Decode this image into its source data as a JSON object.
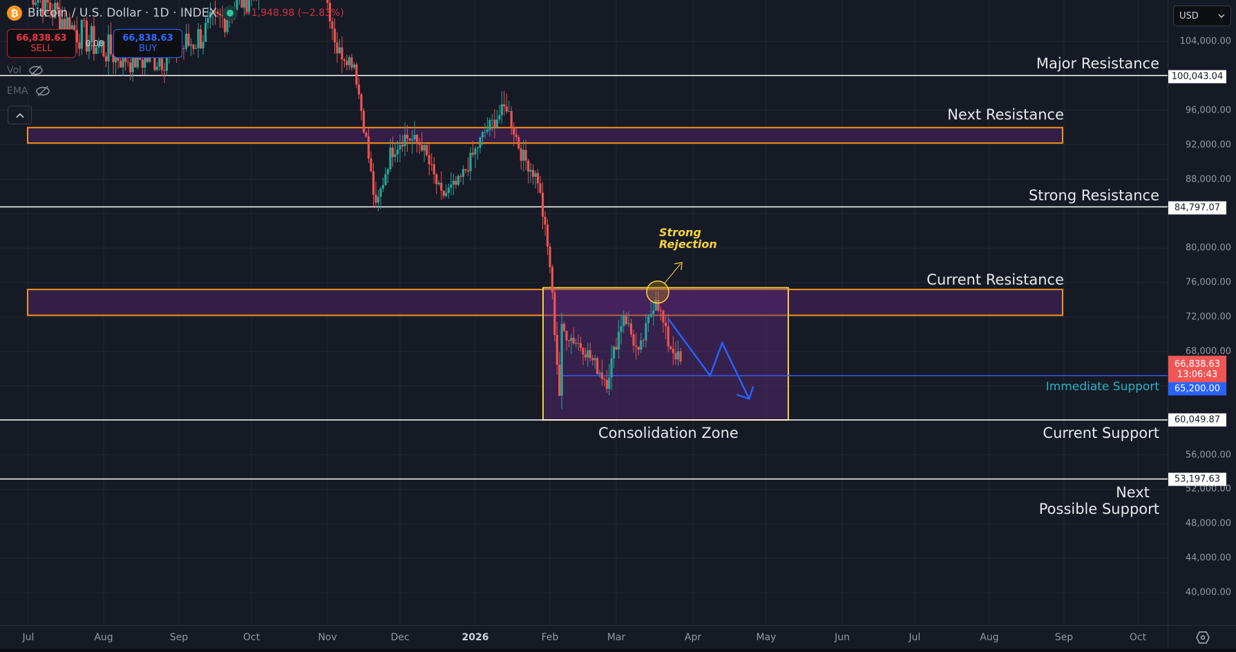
{
  "header": {
    "symbol_title": "Bitcoin / U.S. Dollar · 1D · INDEX",
    "symbol_icon": "bitcoin-icon",
    "market_status": "open",
    "change": "−1,948.98 (−2.83%)",
    "change_color": "#f23645"
  },
  "trade": {
    "sell_price": "66,838.63",
    "sell_label": "SELL",
    "spread": "0.00",
    "buy_price": "66,838.63",
    "buy_label": "BUY"
  },
  "indicators": [
    {
      "label": "Vol",
      "icon": "eye-off-icon"
    },
    {
      "label": "EMA",
      "icon": "eye-off-icon"
    }
  ],
  "collapse_icon": "chevron-up-icon",
  "currency": {
    "label": "USD",
    "icon": "chevron-down-icon"
  },
  "price_axis": {
    "ticks": [
      "104,000.00",
      "96,000.00",
      "92,000.00",
      "88,000.00",
      "80,000.00",
      "76,000.00",
      "72,000.00",
      "68,000.00",
      "56,000.00",
      "52,000.00",
      "48,000.00",
      "44,000.00",
      "40,000.00"
    ],
    "labels": {
      "major_resistance": "100,043.04",
      "strong_resistance": "84,797.07",
      "last_price": "66,838.63",
      "countdown": "13:06:43",
      "immediate_support": "65,200.00",
      "current_support": "60,049.87",
      "next_support": "53,197.63"
    }
  },
  "time_axis": {
    "ticks": [
      "Jul",
      "Aug",
      "Sep",
      "Oct",
      "Nov",
      "Dec",
      "2026",
      "Feb",
      "Mar",
      "Apr",
      "May",
      "Jun",
      "Jul",
      "Aug",
      "Sep",
      "Oct"
    ],
    "settings_icon": "gear-hexagon-icon"
  },
  "annotations": {
    "major_resistance": "Major Resistance",
    "next_resistance": "Next Resistance",
    "strong_resistance": "Strong Resistance",
    "current_resistance": "Current Resistance",
    "immediate_support": "Immediate Support",
    "current_support": "Current Support",
    "next_possible_support_l1": "Next",
    "next_possible_support_l2": "Possible Support",
    "consolidation_zone": "Consolidation Zone",
    "strong_rejection_l1": "Strong",
    "strong_rejection_l2": "Rejection"
  },
  "colors": {
    "background": "#161a25",
    "up_candle": "#26a69a",
    "down_candle": "#ef5350",
    "zone_border_orange": "#f7931a",
    "zone_fill_purple": "#4a1f5c",
    "consolidation_border": "#f5d33a",
    "projection_arrow": "#2962ff",
    "immediate_support_text": "#1fb5c9"
  },
  "chart_data": {
    "type": "candlestick",
    "title": "Bitcoin / U.S. Dollar · 1D · INDEX",
    "xlabel": "",
    "ylabel": "USD",
    "ylim": [
      37000,
      108000
    ],
    "grid": true,
    "x_ticks": [
      "Jul",
      "Aug",
      "Sep",
      "Oct",
      "Nov",
      "Dec",
      "2026",
      "Feb",
      "Mar",
      "Apr",
      "May",
      "Jun",
      "Jul",
      "Aug",
      "Sep",
      "Oct"
    ],
    "y_ticks": [
      40000,
      44000,
      48000,
      52000,
      56000,
      60000,
      64000,
      68000,
      72000,
      76000,
      80000,
      84000,
      88000,
      92000,
      96000,
      100000,
      104000
    ],
    "last_price": 66838.63,
    "change": -1948.98,
    "change_pct": -2.83,
    "approx_close_path": [
      {
        "date": "2025-10-28",
        "close": 114000
      },
      {
        "date": "2025-11-05",
        "close": 103000
      },
      {
        "date": "2025-11-12",
        "close": 101500
      },
      {
        "date": "2025-11-17",
        "close": 92500
      },
      {
        "date": "2025-11-21",
        "close": 84500
      },
      {
        "date": "2025-11-27",
        "close": 91000
      },
      {
        "date": "2025-12-03",
        "close": 93000
      },
      {
        "date": "2025-12-10",
        "close": 92000
      },
      {
        "date": "2025-12-18",
        "close": 86000
      },
      {
        "date": "2025-12-25",
        "close": 87500
      },
      {
        "date": "2026-01-05",
        "close": 93500
      },
      {
        "date": "2026-01-14",
        "close": 96500
      },
      {
        "date": "2026-01-20",
        "close": 91000
      },
      {
        "date": "2026-01-27",
        "close": 88000
      },
      {
        "date": "2026-02-01",
        "close": 78000
      },
      {
        "date": "2026-02-05",
        "close": 63000
      },
      {
        "date": "2026-02-06",
        "close": 70500
      },
      {
        "date": "2026-02-15",
        "close": 68500
      },
      {
        "date": "2026-02-25",
        "close": 64500
      },
      {
        "date": "2026-03-04",
        "close": 72500
      },
      {
        "date": "2026-03-10",
        "close": 67500
      },
      {
        "date": "2026-03-17",
        "close": 74500
      },
      {
        "date": "2026-03-22",
        "close": 69000
      },
      {
        "date": "2026-03-27",
        "close": 66838.63
      }
    ],
    "levels": [
      {
        "name": "Major Resistance",
        "type": "line",
        "price": 100043.04
      },
      {
        "name": "Next Resistance",
        "type": "zone",
        "low": 92200,
        "high": 94000
      },
      {
        "name": "Strong Resistance",
        "type": "line",
        "price": 84797.07
      },
      {
        "name": "Current Resistance",
        "type": "zone",
        "low": 72200,
        "high": 75200
      },
      {
        "name": "Immediate Support",
        "type": "line",
        "price": 65200.0
      },
      {
        "name": "Current Support",
        "type": "line",
        "price": 60049.87
      },
      {
        "name": "Next Possible Support",
        "type": "line",
        "price": 53197.63
      }
    ],
    "consolidation_zone": {
      "from": "2026-02-01",
      "to": "2026-04-30",
      "low": 60049.87,
      "high": 75400
    },
    "projection": [
      {
        "date": "2026-03-22",
        "price": 71800
      },
      {
        "date": "2026-04-08",
        "price": 65200
      },
      {
        "date": "2026-04-13",
        "price": 69000
      },
      {
        "date": "2026-04-24",
        "price": 62500
      }
    ],
    "annotations": [
      "Strong Rejection",
      "Consolidation Zone"
    ]
  }
}
